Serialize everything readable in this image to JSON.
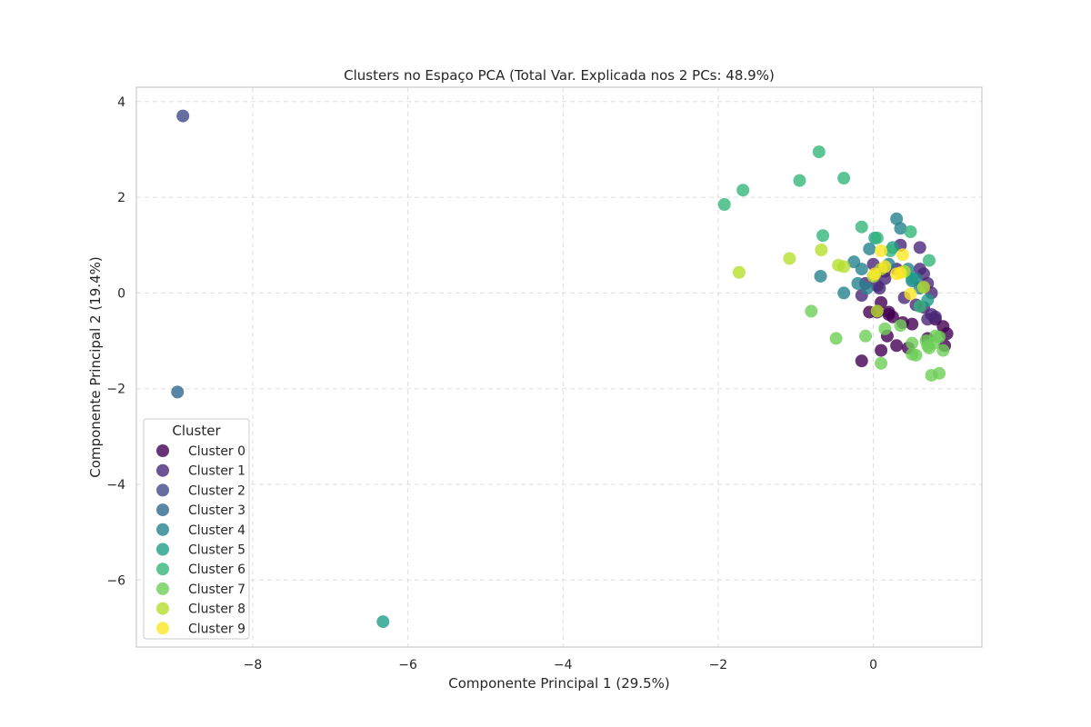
{
  "chart_data": {
    "type": "scatter",
    "title": "Clusters no Espaço PCA (Total Var. Explicada nos 2 PCs: 48.9%)",
    "xlabel": "Componente Principal 1 (29.5%)",
    "ylabel": "Componente Principal 2 (19.4%)",
    "xlim": [
      -9.5,
      1.4
    ],
    "ylim": [
      -7.4,
      4.3
    ],
    "xticks": [
      -8,
      -6,
      -4,
      -2,
      0
    ],
    "yticks": [
      4,
      2,
      0,
      -2,
      -4,
      -6
    ],
    "xtick_labels": [
      "−8",
      "−6",
      "−4",
      "−2",
      "0"
    ],
    "ytick_labels": [
      "4",
      "2",
      "0",
      "−2",
      "−4",
      "−6"
    ],
    "grid": true,
    "legend": {
      "title": "Cluster",
      "placement": "lower-left"
    },
    "series": [
      {
        "name": "Cluster 0",
        "color": "#440154",
        "points": [
          [
            0.2,
            -0.4
          ],
          [
            0.25,
            -0.5
          ],
          [
            0.1,
            -0.2
          ],
          [
            -0.15,
            -1.42
          ],
          [
            0.1,
            -1.2
          ],
          [
            0.3,
            -1.1
          ],
          [
            0.45,
            -1.15
          ],
          [
            0.5,
            -0.65
          ],
          [
            0.38,
            -0.62
          ],
          [
            0.05,
            -0.4
          ],
          [
            0.18,
            -0.9
          ],
          [
            0.9,
            -0.7
          ],
          [
            0.95,
            -0.85
          ],
          [
            0.92,
            -1.1
          ],
          [
            0.8,
            -0.55
          ],
          [
            -0.05,
            -0.4
          ],
          [
            0.2,
            -0.45
          ],
          [
            0.7,
            -0.95
          ]
        ]
      },
      {
        "name": "Cluster 1",
        "color": "#482878",
        "points": [
          [
            0.35,
            1.0
          ],
          [
            0.6,
            0.95
          ],
          [
            0.0,
            0.6
          ],
          [
            0.15,
            0.45
          ],
          [
            0.3,
            0.5
          ],
          [
            0.65,
            0.4
          ],
          [
            0.7,
            0.2
          ],
          [
            0.75,
            0.0
          ],
          [
            0.4,
            -0.1
          ],
          [
            0.55,
            -0.25
          ],
          [
            0.65,
            -0.3
          ],
          [
            0.75,
            -0.45
          ],
          [
            0.8,
            -0.5
          ],
          [
            0.7,
            -0.55
          ],
          [
            -0.1,
            0.2
          ],
          [
            0.05,
            0.15
          ],
          [
            0.15,
            0.3
          ],
          [
            0.6,
            0.5
          ],
          [
            -0.15,
            -0.05
          ],
          [
            0.08,
            0.1
          ]
        ]
      },
      {
        "name": "Cluster 2",
        "color": "#3e4989",
        "points": [
          [
            -8.9,
            3.7
          ]
        ]
      },
      {
        "name": "Cluster 3",
        "color": "#31688e",
        "points": [
          [
            -8.97,
            -2.07
          ]
        ]
      },
      {
        "name": "Cluster 4",
        "color": "#26828e",
        "points": [
          [
            0.3,
            1.55
          ],
          [
            0.35,
            1.35
          ],
          [
            -0.05,
            0.92
          ],
          [
            -0.25,
            0.65
          ],
          [
            -0.15,
            0.5
          ],
          [
            -0.2,
            0.2
          ],
          [
            -0.38,
            0.0
          ],
          [
            -0.68,
            0.35
          ],
          [
            0.45,
            0.5
          ],
          [
            0.5,
            0.25
          ],
          [
            0.55,
            0.3
          ],
          [
            0.6,
            0.1
          ],
          [
            -0.08,
            0.1
          ],
          [
            0.2,
            0.6
          ]
        ]
      },
      {
        "name": "Cluster 5",
        "color": "#1f9e89",
        "points": [
          [
            -6.32,
            -6.87
          ],
          [
            0.02,
            1.15
          ],
          [
            0.25,
            0.95
          ],
          [
            0.5,
            0.3
          ],
          [
            0.7,
            -0.15
          ]
        ]
      },
      {
        "name": "Cluster 6",
        "color": "#35b779",
        "points": [
          [
            -0.7,
            2.95
          ],
          [
            -0.38,
            2.4
          ],
          [
            -0.95,
            2.35
          ],
          [
            -1.68,
            2.15
          ],
          [
            -1.92,
            1.85
          ],
          [
            -0.15,
            1.38
          ],
          [
            0.48,
            1.28
          ],
          [
            -0.65,
            1.2
          ],
          [
            0.72,
            0.68
          ],
          [
            0.22,
            0.88
          ],
          [
            0.6,
            -0.28
          ],
          [
            0.05,
            1.15
          ]
        ]
      },
      {
        "name": "Cluster 7",
        "color": "#6ece58",
        "points": [
          [
            -0.8,
            -0.38
          ],
          [
            -0.48,
            -0.95
          ],
          [
            -0.1,
            -0.9
          ],
          [
            0.1,
            -1.47
          ],
          [
            0.15,
            -0.75
          ],
          [
            0.35,
            -0.68
          ],
          [
            0.5,
            -1.05
          ],
          [
            0.55,
            -1.3
          ],
          [
            0.5,
            -1.28
          ],
          [
            0.68,
            -1.0
          ],
          [
            0.72,
            -1.15
          ],
          [
            0.75,
            -1.72
          ],
          [
            0.85,
            -1.68
          ],
          [
            0.9,
            -1.2
          ],
          [
            0.8,
            -0.9
          ],
          [
            0.85,
            -0.92
          ],
          [
            0.7,
            -1.1
          ],
          [
            0.78,
            -1.05
          ]
        ]
      },
      {
        "name": "Cluster 8",
        "color": "#b5de2b",
        "points": [
          [
            -1.73,
            0.43
          ],
          [
            -1.08,
            0.72
          ],
          [
            -0.67,
            0.9
          ],
          [
            -0.45,
            0.58
          ],
          [
            -0.38,
            0.55
          ],
          [
            0.0,
            0.35
          ],
          [
            0.05,
            -0.38
          ],
          [
            0.1,
            0.5
          ],
          [
            0.4,
            0.45
          ],
          [
            0.65,
            0.12
          ]
        ]
      },
      {
        "name": "Cluster 9",
        "color": "#fde725",
        "points": [
          [
            0.1,
            0.88
          ],
          [
            0.38,
            0.8
          ],
          [
            0.15,
            0.55
          ],
          [
            0.3,
            0.4
          ],
          [
            0.48,
            -0.02
          ],
          [
            0.02,
            0.4
          ],
          [
            0.35,
            0.42
          ]
        ]
      }
    ]
  }
}
